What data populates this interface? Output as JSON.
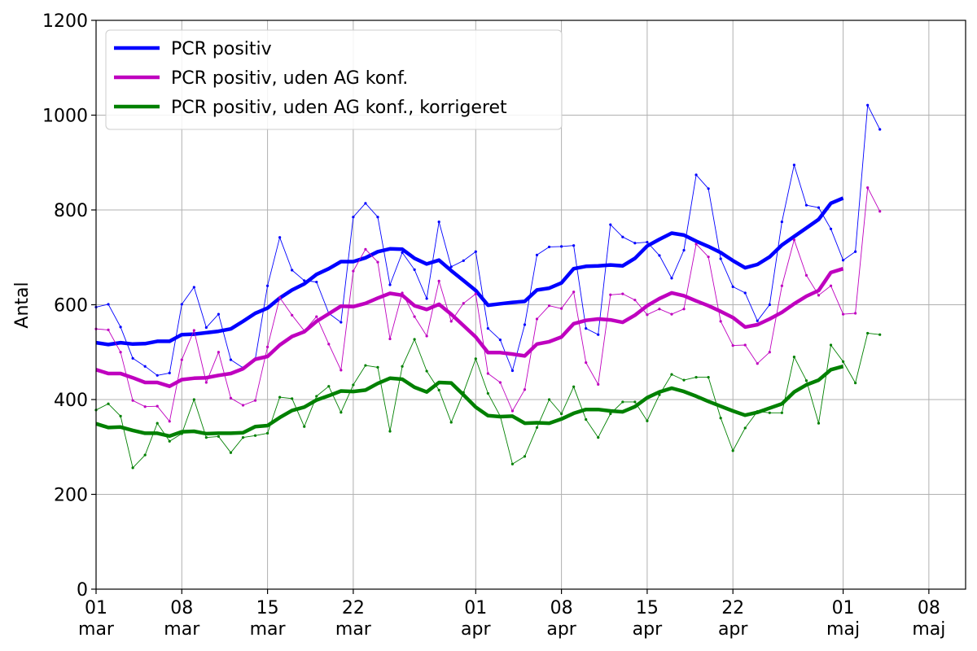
{
  "chart_data": {
    "type": "line",
    "title": "",
    "xlabel": "",
    "ylabel": "Antal",
    "xlim": [
      "2021-03-01",
      "2021-05-11"
    ],
    "ylim": [
      0,
      1200
    ],
    "grid": true,
    "legend_position": "top-left",
    "yticks": [
      0,
      200,
      400,
      600,
      800,
      1000,
      1200
    ],
    "xticks": [
      {
        "date": "2021-03-01",
        "day": "01",
        "month": "mar"
      },
      {
        "date": "2021-03-08",
        "day": "08",
        "month": "mar"
      },
      {
        "date": "2021-03-15",
        "day": "15",
        "month": "mar"
      },
      {
        "date": "2021-03-22",
        "day": "22",
        "month": "mar"
      },
      {
        "date": "2021-04-01",
        "day": "01",
        "month": "apr"
      },
      {
        "date": "2021-04-08",
        "day": "08",
        "month": "apr"
      },
      {
        "date": "2021-04-15",
        "day": "15",
        "month": "apr"
      },
      {
        "date": "2021-04-22",
        "day": "22",
        "month": "apr"
      },
      {
        "date": "2021-05-01",
        "day": "01",
        "month": "maj"
      },
      {
        "date": "2021-05-08",
        "day": "08",
        "month": "maj"
      }
    ],
    "start_date": "2021-03-01",
    "series": [
      {
        "name": "PCR positiv",
        "color": "#0000ff",
        "daily": [
          595,
          601,
          553,
          487,
          470,
          451,
          456,
          601,
          637,
          552,
          580,
          484,
          467,
          485,
          640,
          742,
          673,
          651,
          648,
          582,
          563,
          785,
          814,
          785,
          642,
          710,
          674,
          613,
          775,
          680,
          693,
          712,
          550,
          526,
          461,
          558,
          705,
          722,
          723,
          725,
          550,
          537,
          769,
          743,
          730,
          732,
          704,
          656,
          715,
          874,
          845,
          697,
          638,
          625,
          566,
          600,
          775,
          895,
          810,
          805,
          760,
          694,
          712,
          1021,
          970
        ],
        "avg7": [
          520,
          516,
          520,
          517,
          518,
          523,
          523,
          537,
          538,
          541,
          544,
          549,
          565,
          582,
          593,
          614,
          631,
          644,
          664,
          676,
          691,
          691,
          699,
          712,
          718,
          717,
          698,
          686,
          694,
          672,
          651,
          630,
          599,
          602,
          605,
          607,
          631,
          635,
          646,
          676,
          681,
          682,
          684,
          682,
          698,
          724,
          738,
          751,
          747,
          734,
          723,
          710,
          693,
          678,
          685,
          701,
          726,
          744,
          762,
          780,
          814,
          825
        ],
        "avg_start_offset": 0
      },
      {
        "name": "PCR positiv, uden AG konf.",
        "color": "#bf00bf",
        "daily": [
          549,
          547,
          500,
          398,
          385,
          386,
          354,
          484,
          546,
          436,
          500,
          403,
          388,
          398,
          511,
          615,
          578,
          545,
          575,
          517,
          462,
          671,
          717,
          690,
          528,
          625,
          575,
          534,
          650,
          565,
          603,
          623,
          455,
          436,
          376,
          421,
          570,
          598,
          592,
          627,
          478,
          432,
          621,
          623,
          610,
          579,
          591,
          580,
          591,
          728,
          701,
          565,
          514,
          515,
          476,
          500,
          640,
          737,
          662,
          620,
          640,
          580,
          582,
          847,
          797
        ],
        "avg7": [
          463,
          455,
          455,
          446,
          436,
          436,
          428,
          442,
          445,
          446,
          451,
          455,
          465,
          485,
          491,
          515,
          533,
          543,
          565,
          581,
          597,
          596,
          603,
          614,
          624,
          620,
          598,
          590,
          601,
          580,
          556,
          532,
          499,
          499,
          496,
          492,
          517,
          522,
          532,
          560,
          567,
          570,
          568,
          563,
          578,
          598,
          613,
          625,
          619,
          608,
          598,
          586,
          573,
          553,
          558,
          570,
          584,
          602,
          618,
          630,
          668,
          676
        ],
        "avg_start_offset": 0
      },
      {
        "name": "PCR positiv, uden AG konf., korrigeret",
        "color": "#008000",
        "daily": [
          378,
          391,
          365,
          256,
          283,
          350,
          312,
          328,
          400,
          320,
          322,
          288,
          320,
          324,
          329,
          405,
          402,
          343,
          407,
          428,
          373,
          431,
          472,
          468,
          333,
          470,
          527,
          460,
          420,
          352,
          415,
          486,
          413,
          365,
          264,
          280,
          341,
          400,
          370,
          427,
          358,
          320,
          370,
          395,
          395,
          355,
          410,
          453,
          441,
          447,
          447,
          361,
          292,
          340,
          375,
          372,
          372,
          490,
          440,
          350,
          515,
          480,
          435,
          540,
          537
        ],
        "avg7": [
          349,
          341,
          342,
          335,
          329,
          329,
          323,
          332,
          333,
          328,
          329,
          329,
          330,
          343,
          345,
          362,
          377,
          384,
          399,
          408,
          418,
          417,
          420,
          434,
          445,
          443,
          426,
          416,
          436,
          435,
          410,
          384,
          366,
          364,
          365,
          350,
          351,
          350,
          359,
          371,
          379,
          379,
          376,
          374,
          385,
          404,
          416,
          424,
          417,
          407,
          396,
          386,
          376,
          367,
          373,
          382,
          391,
          416,
          431,
          441,
          463,
          470
        ],
        "avg_start_offset": 0
      }
    ]
  }
}
